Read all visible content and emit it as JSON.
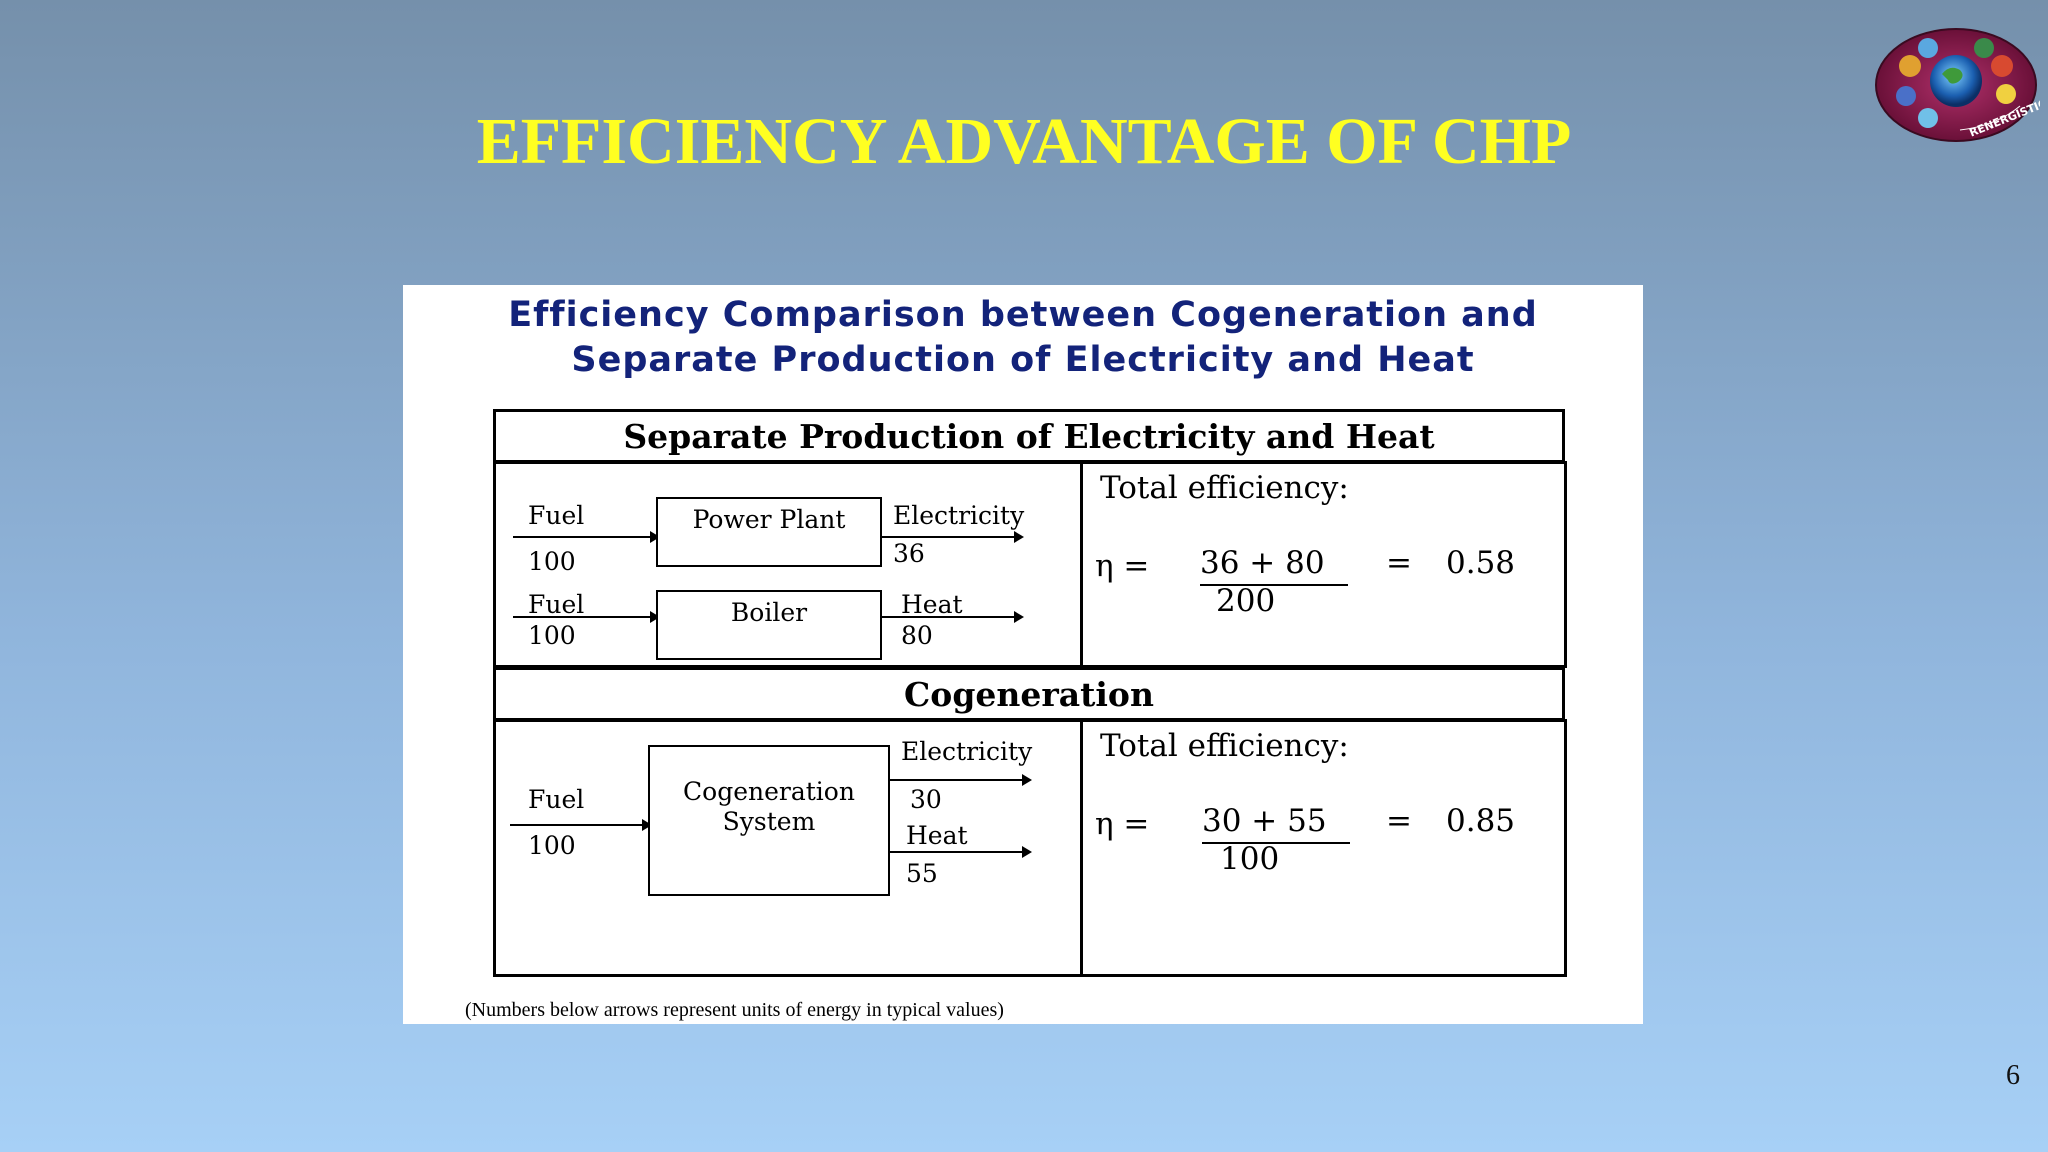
{
  "slide": {
    "title": "EFFICIENCY ADVANTAGE OF CHP",
    "page_number": "6",
    "logo_text": "RENERGISTICS"
  },
  "figure": {
    "heading_line1": "Efficiency Comparison between Cogeneration and",
    "heading_line2": "Separate Production of Electricity and Heat",
    "separate": {
      "header": "Separate Production of Electricity and Heat",
      "power_plant": {
        "fuel_label": "Fuel",
        "fuel_value": "100",
        "box_label": "Power Plant",
        "output_label": "Electricity",
        "output_value": "36"
      },
      "boiler": {
        "fuel_label": "Fuel",
        "fuel_value": "100",
        "box_label": "Boiler",
        "output_label": "Heat",
        "output_value": "80"
      },
      "efficiency": {
        "label": "Total efficiency:",
        "eta": "η =",
        "numerator": "36 + 80",
        "denominator": "200",
        "equals": "=",
        "result": "0.58"
      }
    },
    "cogeneration": {
      "header": "Cogeneration",
      "fuel_label": "Fuel",
      "fuel_value": "100",
      "box_line1": "Cogeneration",
      "box_line2": "System",
      "electricity_label": "Electricity",
      "electricity_value": "30",
      "heat_label": "Heat",
      "heat_value": "55",
      "efficiency": {
        "label": "Total efficiency:",
        "eta": "η =",
        "numerator": "30 + 55",
        "denominator": "100",
        "equals": "=",
        "result": "0.85"
      }
    },
    "footnote": "(Numbers below arrows represent units of energy in typical values)"
  },
  "colors": {
    "title": "#ffff21",
    "figure_heading": "#13237a"
  }
}
